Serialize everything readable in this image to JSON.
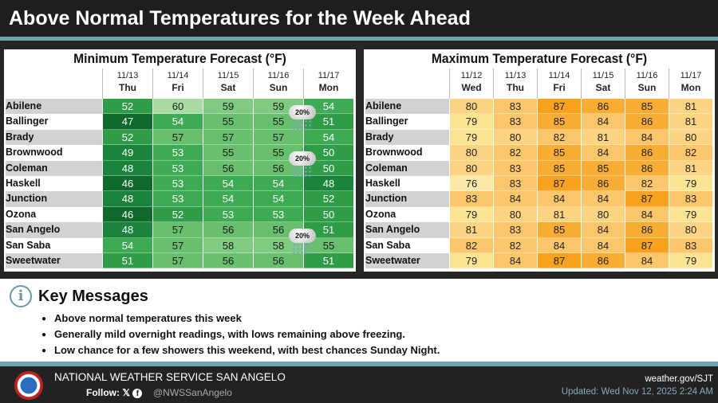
{
  "header": {
    "title": "Above Normal Temperatures for the Week Ahead"
  },
  "cities": [
    "Abilene",
    "Ballinger",
    "Brady",
    "Brownwood",
    "Coleman",
    "Haskell",
    "Junction",
    "Ozona",
    "San Angelo",
    "San Saba",
    "Sweetwater"
  ],
  "min_table": {
    "title": "Minimum Temperature Forecast (°F)",
    "columns": [
      {
        "date": "11/13",
        "day": "Thu"
      },
      {
        "date": "11/14",
        "day": "Fri"
      },
      {
        "date": "11/15",
        "day": "Sat"
      },
      {
        "date": "11/16",
        "day": "Sun"
      },
      {
        "date": "11/17",
        "day": "Mon"
      }
    ],
    "values": [
      [
        52,
        60,
        59,
        59,
        54
      ],
      [
        47,
        54,
        55,
        55,
        51
      ],
      [
        52,
        57,
        57,
        57,
        54
      ],
      [
        49,
        53,
        55,
        55,
        50
      ],
      [
        48,
        53,
        56,
        56,
        50
      ],
      [
        46,
        53,
        54,
        54,
        48
      ],
      [
        48,
        53,
        54,
        54,
        52
      ],
      [
        46,
        52,
        53,
        53,
        50
      ],
      [
        48,
        57,
        56,
        56,
        51
      ],
      [
        54,
        57,
        58,
        58,
        55
      ],
      [
        51,
        57,
        56,
        56,
        51
      ]
    ],
    "rain_chances": [
      {
        "label": "20%",
        "rows": "Abilene-Ballinger",
        "period": "Sun night"
      },
      {
        "label": "20%",
        "rows": "Brownwood-Coleman",
        "period": "Sun night"
      },
      {
        "label": "20%",
        "rows": "San Angelo-San Saba",
        "period": "Sun night"
      }
    ]
  },
  "max_table": {
    "title": "Maximum Temperature Forecast (°F)",
    "columns": [
      {
        "date": "11/12",
        "day": "Wed"
      },
      {
        "date": "11/13",
        "day": "Thu"
      },
      {
        "date": "11/14",
        "day": "Fri"
      },
      {
        "date": "11/15",
        "day": "Sat"
      },
      {
        "date": "11/16",
        "day": "Sun"
      },
      {
        "date": "11/17",
        "day": "Mon"
      }
    ],
    "values": [
      [
        80,
        83,
        87,
        86,
        85,
        81
      ],
      [
        79,
        83,
        85,
        84,
        86,
        81
      ],
      [
        79,
        80,
        82,
        81,
        84,
        80
      ],
      [
        80,
        82,
        85,
        84,
        86,
        82
      ],
      [
        80,
        83,
        85,
        85,
        86,
        81
      ],
      [
        76,
        83,
        87,
        86,
        82,
        79
      ],
      [
        83,
        84,
        84,
        84,
        87,
        83
      ],
      [
        79,
        80,
        81,
        80,
        84,
        79
      ],
      [
        81,
        83,
        85,
        84,
        86,
        80
      ],
      [
        82,
        82,
        84,
        84,
        87,
        83
      ],
      [
        79,
        84,
        87,
        86,
        84,
        79
      ]
    ]
  },
  "key_messages": {
    "title": "Key Messages",
    "items": [
      "Above normal temperatures this week",
      "Generally mild overnight readings, with lows remaining above freezing.",
      "Low chance for a few showers this weekend, with best chances Sunday Night."
    ]
  },
  "footer": {
    "org": "NATIONAL WEATHER SERVICE SAN ANGELO",
    "follow": "Follow:",
    "handle": "@NWSSanAngelo",
    "website": "weather.gov/SJT",
    "updated": "Updated: Wed Nov 12, 2025 2:24 AM",
    "logo_text": "NATIONAL WEATHER SERVICE"
  }
}
